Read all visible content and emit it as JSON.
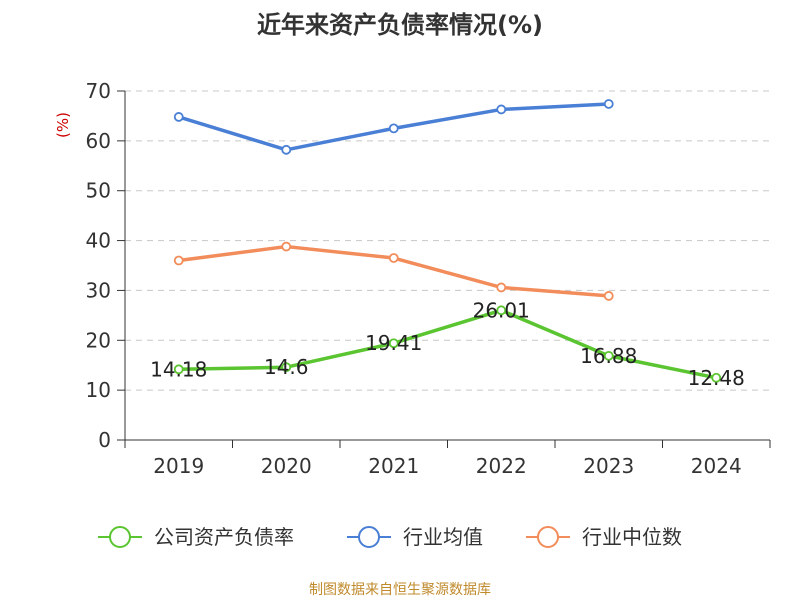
{
  "chart_data": {
    "type": "line",
    "title": "近年来资产负债率情况(%)",
    "ylabel": "(%)",
    "categories": [
      "2019",
      "2020",
      "2021",
      "2022",
      "2023",
      "2024"
    ],
    "ylim": [
      0,
      70
    ],
    "yticks": [
      0,
      10,
      20,
      30,
      40,
      50,
      60,
      70
    ],
    "grid": true,
    "legend_position": "bottom",
    "series": [
      {
        "name": "公司资产负债率",
        "color": "#5ac530",
        "values": [
          14.18,
          14.6,
          19.41,
          26.01,
          16.88,
          12.48
        ],
        "labels": [
          "14.18",
          "14.6",
          "19.41",
          "26.01",
          "16.88",
          "12.48"
        ]
      },
      {
        "name": "行业均值",
        "color": "#4a7fd6",
        "values": [
          64.8,
          58.2,
          62.5,
          66.3,
          67.4,
          null
        ]
      },
      {
        "name": "行业中位数",
        "color": "#f28c5a",
        "values": [
          36.0,
          38.8,
          36.5,
          30.6,
          28.9,
          null
        ]
      }
    ]
  },
  "footer": {
    "source": "制图数据来自恒生聚源数据库"
  }
}
